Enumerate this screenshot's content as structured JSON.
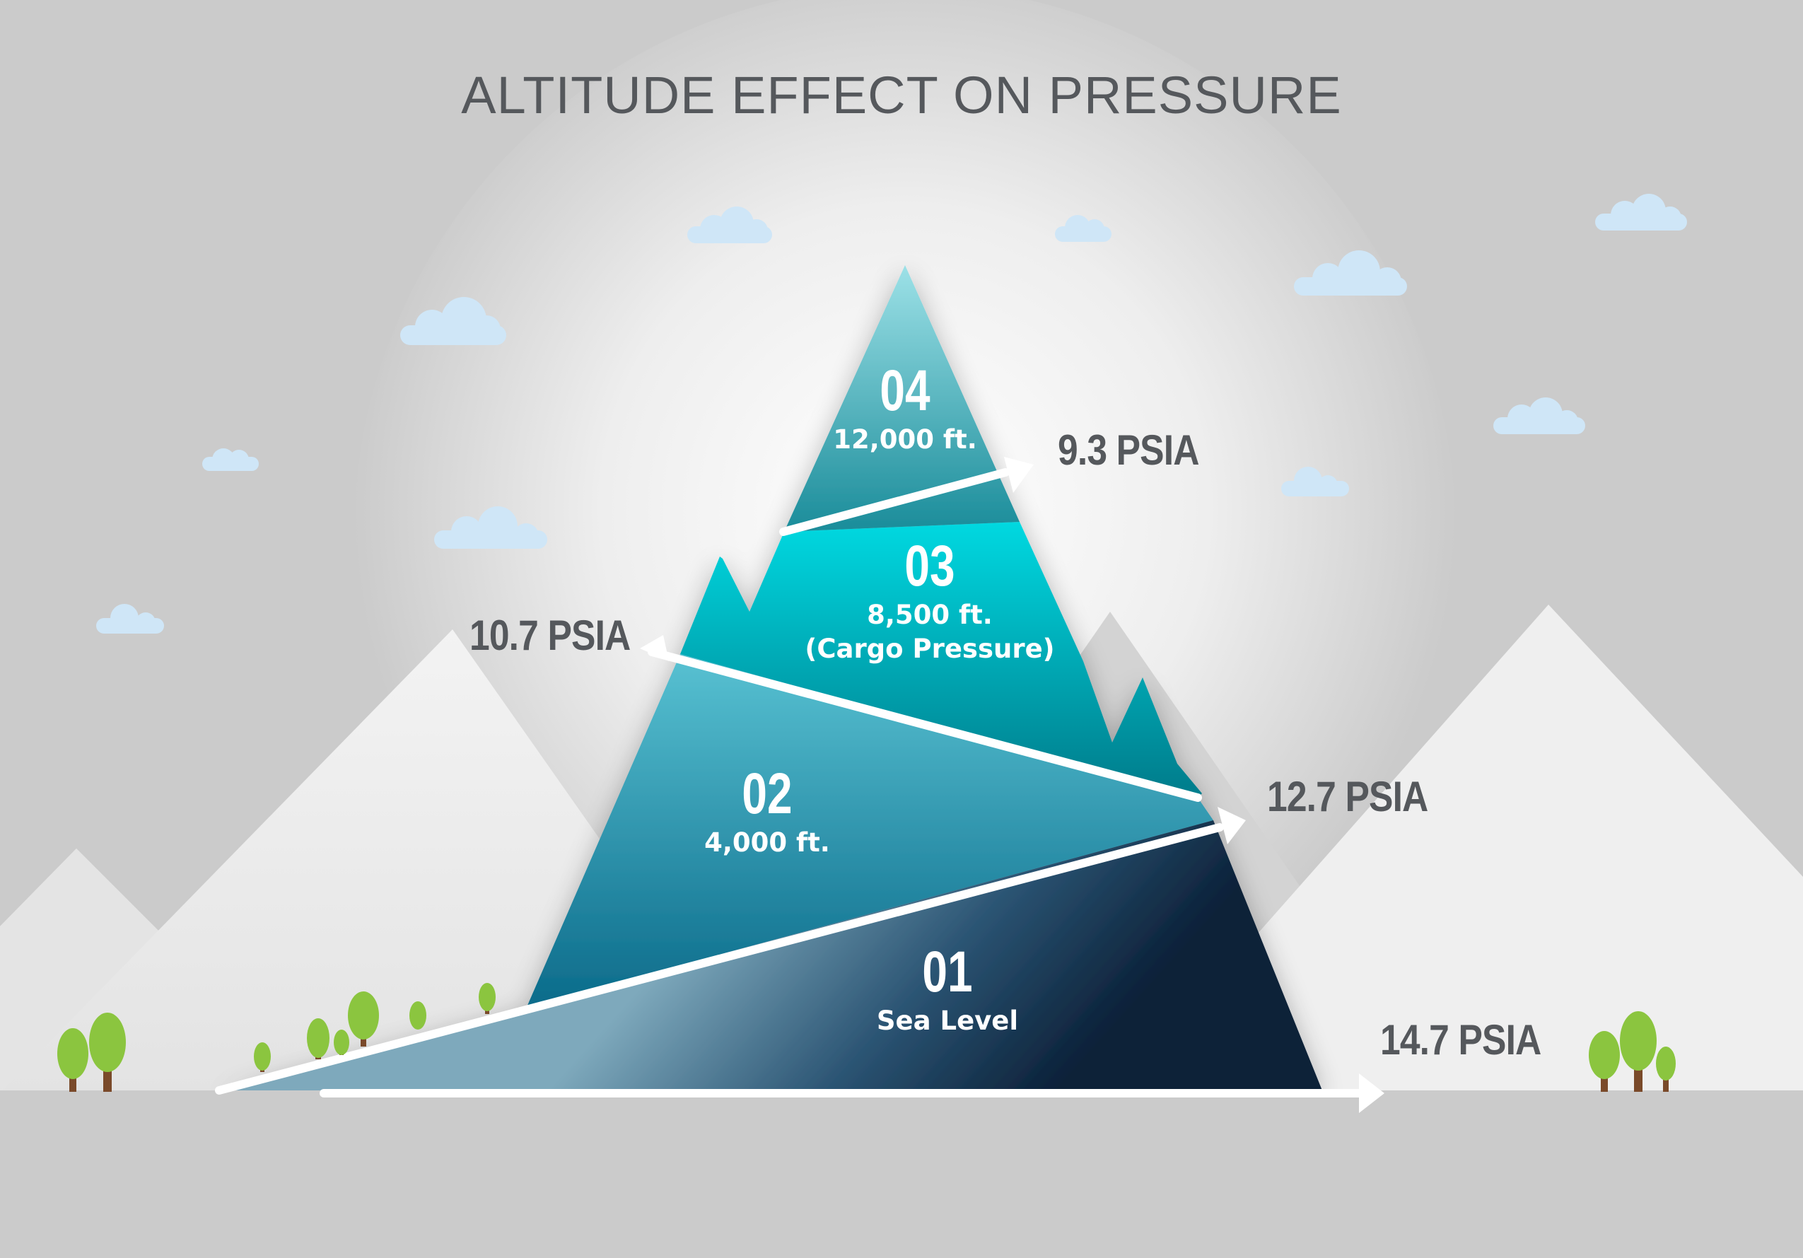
{
  "title": "ALTITUDE EFFECT ON PRESSURE",
  "zones": [
    {
      "number": "01",
      "altitude": "Sea Level",
      "note": ""
    },
    {
      "number": "02",
      "altitude": "4,000 ft.",
      "note": ""
    },
    {
      "number": "03",
      "altitude": "8,500 ft.",
      "note": "(Cargo Pressure)"
    },
    {
      "number": "04",
      "altitude": "12,000 ft.",
      "note": ""
    }
  ],
  "pressures": [
    {
      "label": "14.7 PSIA"
    },
    {
      "label": "12.7 PSIA"
    },
    {
      "label": "10.7 PSIA"
    },
    {
      "label": "9.3 PSIA"
    }
  ],
  "colors": {
    "background": "#cbcbcb",
    "text": "#55585c",
    "zone_01": "#0e2a44",
    "zone_02": "#1a8fb0",
    "zone_03": "#00c9d6",
    "zone_04": "#3ab0bd",
    "tree": "#8bc53f",
    "trunk": "#7a4a2a"
  }
}
